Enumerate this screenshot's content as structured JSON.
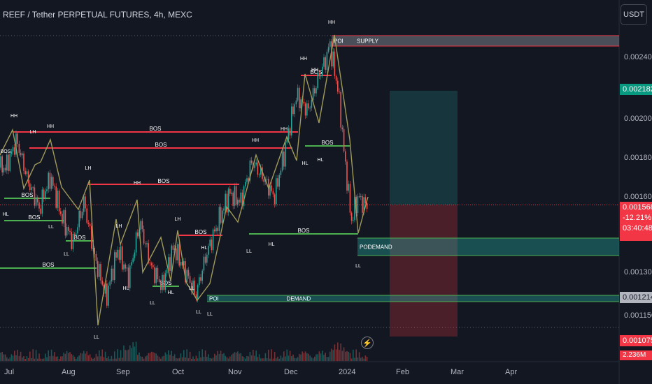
{
  "header": {
    "title": "REEF / Tether PERPETUAL FUTURES, 4h, MEXC",
    "currency": "USDT"
  },
  "colors": {
    "background": "#131722",
    "bos_red": "#f23645",
    "bos_green": "#4caf50",
    "zigzag": "#a09a5a",
    "demand_teal": "#26a69a",
    "supply_gray": "#787b86",
    "candle_up": "#26a69a",
    "candle_down": "#ef5350"
  },
  "price_scale": {
    "ticks": [
      "0.002400",
      "0.002000",
      "0.001800",
      "0.001600",
      "0.001300",
      "0.001150"
    ],
    "badges": {
      "target": "0.002182",
      "last_price": "0.001568",
      "change": "-12.21%",
      "countdown": "03:40:48",
      "poi": "0.001214",
      "stop": "0.001075",
      "volume": "2.236M"
    }
  },
  "time_axis": {
    "ticks": [
      "Jul",
      "Aug",
      "Sep",
      "Oct",
      "Nov",
      "Dec",
      "2024",
      "Feb",
      "Mar",
      "Apr"
    ]
  },
  "chart_data": {
    "type": "candlestick",
    "title": "REEF / Tether PERPETUAL FUTURES, 4h, MEXC",
    "y_unit": "USDT",
    "close_path": [
      [
        "Jul",
        0.00175
      ],
      [
        "Jul",
        0.00189
      ],
      [
        "Jul",
        0.00168
      ],
      [
        "Jul",
        0.00155
      ],
      [
        "Jul",
        0.0017
      ],
      [
        "Aug",
        0.00152
      ],
      [
        "Aug",
        0.00142
      ],
      [
        "Aug",
        0.00158
      ],
      [
        "Aug",
        0.00135
      ],
      [
        "Aug",
        0.00121
      ],
      [
        "Sep",
        0.00139
      ],
      [
        "Sep",
        0.00128
      ],
      [
        "Sep",
        0.0015
      ],
      [
        "Sep",
        0.00132
      ],
      [
        "Sep",
        0.00125
      ],
      [
        "Oct",
        0.0014
      ],
      [
        "Oct",
        0.00131
      ],
      [
        "Oct",
        0.00122
      ],
      [
        "Oct",
        0.00138
      ],
      [
        "Oct",
        0.0015
      ],
      [
        "Nov",
        0.00162
      ],
      [
        "Nov",
        0.00158
      ],
      [
        "Nov",
        0.00178
      ],
      [
        "Nov",
        0.0017
      ],
      [
        "Nov",
        0.0016
      ],
      [
        "Dec",
        0.00185
      ],
      [
        "Dec",
        0.00215
      ],
      [
        "Dec",
        0.00205
      ],
      [
        "Dec",
        0.00228
      ],
      [
        "Dec",
        0.00245
      ],
      [
        "2024",
        0.0022
      ],
      [
        "2024",
        0.0018
      ],
      [
        "2024",
        0.0015
      ],
      [
        "2024",
        0.0016
      ],
      [
        "2024",
        0.001568
      ]
    ],
    "structure_lines": [
      {
        "label": "BOS",
        "color": "red"
      },
      {
        "label": "BOS",
        "color": "red"
      },
      {
        "label": "BOS",
        "color": "red"
      },
      {
        "label": "BOS",
        "color": "red"
      },
      {
        "label": "BOS",
        "color": "red"
      },
      {
        "label": "BOS",
        "color": "green"
      },
      {
        "label": "BOS",
        "color": "green"
      },
      {
        "label": "BOS",
        "color": "green"
      },
      {
        "label": "BOS",
        "color": "green"
      },
      {
        "label": "BOS",
        "color": "green"
      },
      {
        "label": "BOS",
        "color": "green"
      },
      {
        "label": "BOS",
        "color": "green"
      }
    ],
    "zones": [
      {
        "label": "POI",
        "name": "SUPPLY",
        "type": "supply"
      },
      {
        "label": "POI",
        "name": "DEMAND",
        "type": "demand"
      },
      {
        "label": "POI",
        "name": "DEMAND",
        "type": "demand"
      }
    ],
    "swing_labels": [
      "HH",
      "LH",
      "HH",
      "BOS",
      "HL",
      "LL",
      "LH",
      "HH",
      "LH",
      "HL",
      "LL",
      "LH",
      "LL",
      "HL",
      "LL",
      "HL",
      "LL",
      "LL",
      "HH",
      "HH",
      "HH",
      "HL",
      "HL",
      "HL",
      "LL",
      "HH",
      "HH",
      "LL",
      "LL"
    ],
    "position": {
      "type": "long",
      "entry": 0.001568,
      "target": 0.002182,
      "stop": 0.001075
    }
  }
}
